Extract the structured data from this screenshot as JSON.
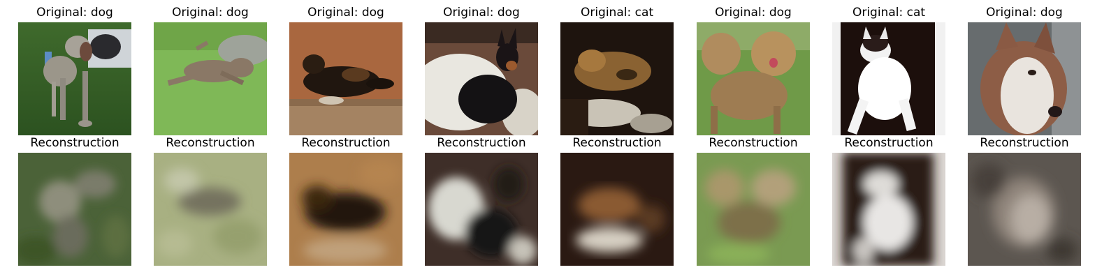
{
  "figure": {
    "original_row": [
      {
        "title": "Original: dog",
        "label": "dog",
        "kind": "original",
        "scene": "grey-dog-standing-on-grass"
      },
      {
        "title": "Original: dog",
        "label": "dog",
        "kind": "original",
        "scene": "dog-leaping-over-grass"
      },
      {
        "title": "Original: dog",
        "label": "dog",
        "kind": "original",
        "scene": "dark-dog-lying-on-ground"
      },
      {
        "title": "Original: dog",
        "label": "dog",
        "kind": "original",
        "scene": "black-dog-on-white-blanket"
      },
      {
        "title": "Original: cat",
        "label": "cat",
        "kind": "original",
        "scene": "tabby-cat-lying-in-shadow"
      },
      {
        "title": "Original: dog",
        "label": "dog",
        "kind": "original",
        "scene": "two-fluffy-dogs-on-grass"
      },
      {
        "title": "Original: cat",
        "label": "cat",
        "kind": "original",
        "scene": "white-cat-on-dark-background"
      },
      {
        "title": "Original: dog",
        "label": "dog",
        "kind": "original",
        "scene": "husky-portrait"
      }
    ],
    "reconstruction_row": [
      {
        "title": "Reconstruction",
        "kind": "reconstruction"
      },
      {
        "title": "Reconstruction",
        "kind": "reconstruction"
      },
      {
        "title": "Reconstruction",
        "kind": "reconstruction"
      },
      {
        "title": "Reconstruction",
        "kind": "reconstruction"
      },
      {
        "title": "Reconstruction",
        "kind": "reconstruction"
      },
      {
        "title": "Reconstruction",
        "kind": "reconstruction"
      },
      {
        "title": "Reconstruction",
        "kind": "reconstruction"
      },
      {
        "title": "Reconstruction",
        "kind": "reconstruction"
      }
    ]
  }
}
